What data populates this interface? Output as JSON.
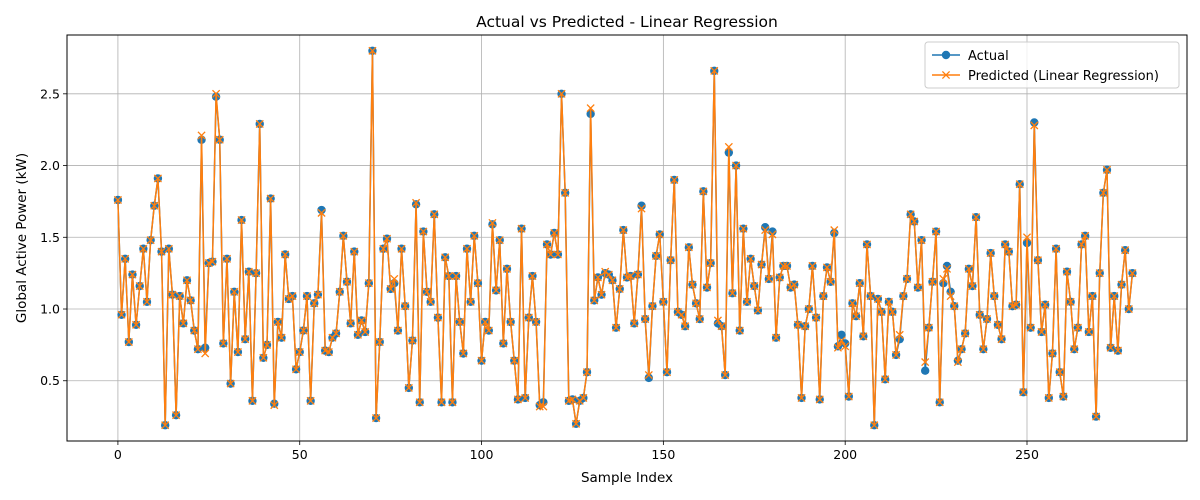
{
  "chart_data": {
    "type": "line",
    "title": "Actual vs Predicted - Linear Regression",
    "xlabel": "Sample Index",
    "ylabel": "Global Active Power (kW)",
    "xlim": [
      -14,
      294
    ],
    "ylim": [
      0.08,
      2.91
    ],
    "xticks": [
      0,
      50,
      100,
      150,
      200,
      250
    ],
    "yticks": [
      0.5,
      1.0,
      1.5,
      2.0,
      2.5
    ],
    "xtick_labels": [
      "0",
      "50",
      "100",
      "150",
      "200",
      "250"
    ],
    "ytick_labels": [
      "0.5",
      "1.0",
      "1.5",
      "2.0",
      "2.5"
    ],
    "grid": true,
    "legend_position": "top-right",
    "colors": {
      "actual": "#1f77b4",
      "predicted": "#ff7f0e"
    },
    "series": [
      {
        "name": "Actual",
        "marker": "circle",
        "values": [
          1.76,
          0.96,
          1.35,
          0.77,
          1.24,
          0.89,
          1.16,
          1.42,
          1.05,
          1.48,
          1.72,
          1.91,
          1.4,
          0.19,
          1.42,
          1.1,
          0.26,
          1.09,
          0.9,
          1.2,
          1.06,
          0.85,
          0.72,
          2.18,
          0.73,
          1.32,
          1.33,
          2.48,
          2.18,
          0.76,
          1.35,
          0.48,
          1.12,
          0.7,
          1.62,
          0.79,
          1.26,
          0.36,
          1.25,
          2.29,
          0.66,
          0.75,
          1.77,
          0.34,
          0.91,
          0.8,
          1.38,
          1.07,
          1.09,
          0.58,
          0.7,
          0.85,
          1.09,
          0.36,
          1.04,
          1.1,
          1.69,
          0.71,
          0.7,
          0.8,
          0.83,
          1.12,
          1.51,
          1.19,
          0.9,
          1.4,
          0.82,
          0.92,
          0.84,
          1.18,
          2.8,
          0.24,
          0.77,
          1.42,
          1.49,
          1.14,
          1.18,
          0.85,
          1.42,
          1.02,
          0.45,
          0.78,
          1.73,
          0.35,
          1.54,
          1.12,
          1.05,
          1.66,
          0.94,
          0.35,
          1.36,
          1.23,
          0.35,
          1.23,
          0.91,
          0.69,
          1.42,
          1.05,
          1.51,
          1.18,
          0.64,
          0.91,
          0.85,
          1.59,
          1.13,
          1.48,
          0.76,
          1.28,
          0.91,
          0.64,
          0.37,
          1.56,
          0.38,
          0.94,
          1.23,
          0.91,
          0.33,
          0.35,
          1.45,
          1.38,
          1.53,
          1.38,
          2.5,
          1.81,
          0.36,
          0.37,
          0.2,
          0.36,
          0.38,
          0.56,
          2.36,
          1.06,
          1.22,
          1.1,
          1.25,
          1.24,
          1.2,
          0.87,
          1.14,
          1.55,
          1.22,
          1.23,
          0.9,
          1.24,
          1.72,
          0.93,
          0.52,
          1.02,
          1.37,
          1.52,
          1.05,
          0.56,
          1.34,
          1.9,
          0.98,
          0.96,
          0.88,
          1.43,
          1.17,
          1.04,
          0.93,
          1.82,
          1.15,
          1.32,
          2.66,
          0.9,
          0.88,
          0.54,
          2.09,
          1.11,
          2.0,
          0.85,
          1.56,
          1.05,
          1.35,
          1.16,
          0.99,
          1.31,
          1.57,
          1.21,
          1.54,
          0.8,
          1.22,
          1.3,
          1.3,
          1.15,
          1.17,
          0.89,
          0.38,
          0.88,
          1.0,
          1.3,
          0.94,
          0.37,
          1.09,
          1.29,
          1.19,
          1.53,
          0.74,
          0.82,
          0.76,
          0.39,
          1.04,
          0.95,
          1.18,
          0.81,
          1.45,
          1.09,
          0.19,
          1.07,
          0.98,
          0.51,
          1.05,
          0.98,
          0.68,
          0.79,
          1.09,
          1.21,
          1.66,
          1.61,
          1.15,
          1.48,
          0.57,
          0.87,
          1.19,
          1.54,
          0.35,
          1.18,
          1.3,
          1.12,
          1.02,
          0.64,
          0.72,
          0.83,
          1.28,
          1.16,
          1.64,
          0.96,
          0.72,
          0.93,
          1.39,
          1.09,
          0.89,
          0.79,
          1.45,
          1.4,
          1.02,
          1.03,
          1.87,
          0.42,
          1.46,
          0.87,
          2.3,
          1.34,
          0.84,
          1.03,
          0.38,
          0.69,
          1.42,
          0.56,
          0.39,
          1.26,
          1.05,
          0.72,
          0.87,
          1.45,
          1.51,
          0.84,
          1.09,
          0.25,
          1.25,
          1.81,
          1.97,
          0.73,
          1.09,
          0.71,
          1.17,
          1.41,
          1.0,
          1.25
        ]
      },
      {
        "name": "Predicted (Linear Regression)",
        "marker": "x",
        "values": [
          1.76,
          0.96,
          1.35,
          0.77,
          1.24,
          0.89,
          1.16,
          1.42,
          1.05,
          1.48,
          1.72,
          1.91,
          1.4,
          0.19,
          1.42,
          1.1,
          0.26,
          1.09,
          0.9,
          1.2,
          1.06,
          0.85,
          0.72,
          2.21,
          0.69,
          1.32,
          1.33,
          2.5,
          2.18,
          0.76,
          1.35,
          0.48,
          1.12,
          0.7,
          1.62,
          0.79,
          1.26,
          0.36,
          1.25,
          2.29,
          0.66,
          0.75,
          1.77,
          0.33,
          0.91,
          0.8,
          1.38,
          1.07,
          1.09,
          0.58,
          0.7,
          0.85,
          1.09,
          0.36,
          1.04,
          1.1,
          1.67,
          0.71,
          0.7,
          0.8,
          0.83,
          1.12,
          1.51,
          1.19,
          0.9,
          1.4,
          0.82,
          0.92,
          0.84,
          1.18,
          2.8,
          0.24,
          0.77,
          1.42,
          1.49,
          1.14,
          1.21,
          0.85,
          1.42,
          1.02,
          0.45,
          0.78,
          1.74,
          0.35,
          1.54,
          1.12,
          1.05,
          1.66,
          0.94,
          0.35,
          1.36,
          1.23,
          0.35,
          1.23,
          0.91,
          0.69,
          1.42,
          1.05,
          1.51,
          1.18,
          0.64,
          0.91,
          0.85,
          1.6,
          1.13,
          1.48,
          0.76,
          1.28,
          0.91,
          0.64,
          0.37,
          1.56,
          0.38,
          0.94,
          1.23,
          0.91,
          0.32,
          0.32,
          1.45,
          1.38,
          1.53,
          1.38,
          2.5,
          1.81,
          0.36,
          0.37,
          0.2,
          0.36,
          0.38,
          0.56,
          2.4,
          1.06,
          1.22,
          1.1,
          1.26,
          1.24,
          1.2,
          0.87,
          1.14,
          1.55,
          1.22,
          1.23,
          0.9,
          1.24,
          1.7,
          0.93,
          0.54,
          1.02,
          1.37,
          1.52,
          1.05,
          0.56,
          1.34,
          1.9,
          0.98,
          0.96,
          0.88,
          1.43,
          1.17,
          1.04,
          0.93,
          1.82,
          1.15,
          1.32,
          2.66,
          0.92,
          0.88,
          0.54,
          2.13,
          1.11,
          2.0,
          0.85,
          1.56,
          1.05,
          1.35,
          1.16,
          0.99,
          1.31,
          1.55,
          1.21,
          1.52,
          0.8,
          1.22,
          1.3,
          1.3,
          1.15,
          1.17,
          0.89,
          0.38,
          0.88,
          1.0,
          1.3,
          0.94,
          0.37,
          1.09,
          1.29,
          1.19,
          1.55,
          0.73,
          0.78,
          0.74,
          0.39,
          1.04,
          0.95,
          1.18,
          0.81,
          1.45,
          1.09,
          0.19,
          1.07,
          0.98,
          0.51,
          1.05,
          0.98,
          0.68,
          0.82,
          1.09,
          1.21,
          1.66,
          1.61,
          1.15,
          1.48,
          0.63,
          0.87,
          1.19,
          1.54,
          0.35,
          1.21,
          1.28,
          1.09,
          1.02,
          0.63,
          0.72,
          0.83,
          1.28,
          1.16,
          1.64,
          0.96,
          0.72,
          0.93,
          1.39,
          1.09,
          0.89,
          0.79,
          1.45,
          1.4,
          1.02,
          1.03,
          1.87,
          0.42,
          1.5,
          0.87,
          2.28,
          1.34,
          0.84,
          1.03,
          0.38,
          0.69,
          1.42,
          0.56,
          0.39,
          1.26,
          1.05,
          0.72,
          0.87,
          1.45,
          1.51,
          0.84,
          1.09,
          0.25,
          1.25,
          1.81,
          1.97,
          0.73,
          1.09,
          0.71,
          1.17,
          1.41,
          1.0,
          1.25
        ]
      }
    ]
  }
}
